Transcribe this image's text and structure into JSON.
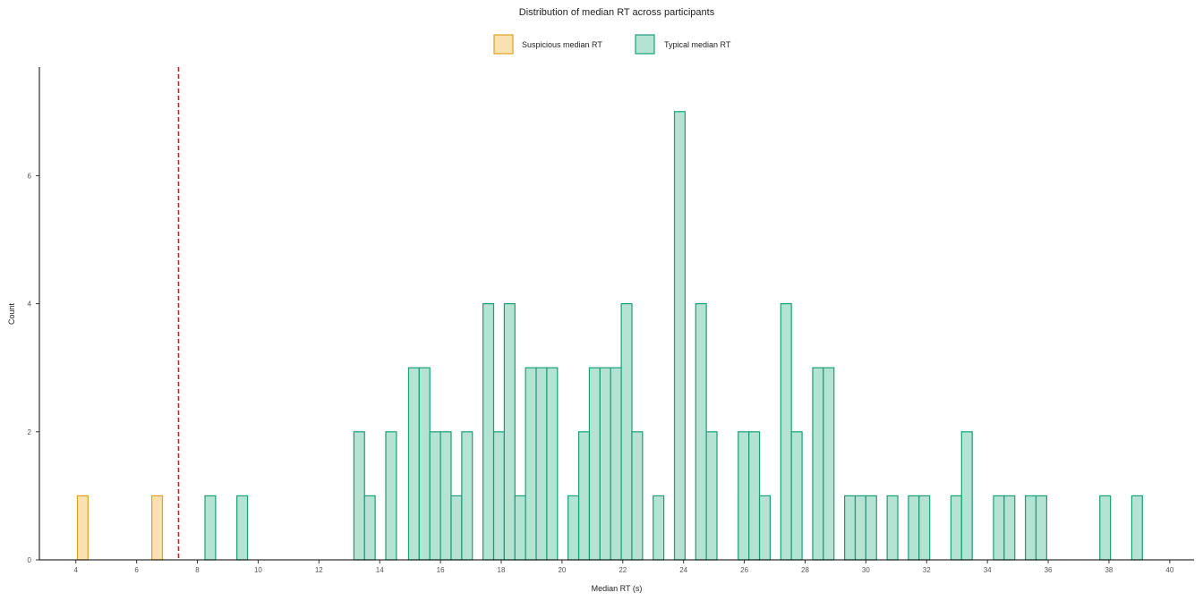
{
  "chart_data": {
    "type": "bar",
    "title": "Distribution of median RT across participants",
    "xlabel": "Median RT (s)",
    "ylabel": "Count",
    "xlim": [
      2.8,
      40.8
    ],
    "ylim": [
      0,
      7.0
    ],
    "bin_width": 0.35,
    "x_ticks": [
      "4",
      "6",
      "8",
      "10",
      "12",
      "14",
      "16",
      "18",
      "20",
      "22",
      "24",
      "26",
      "28",
      "30",
      "32",
      "34",
      "36",
      "38",
      "40"
    ],
    "y_ticks": [
      "0",
      "2",
      "4",
      "6"
    ],
    "threshold_line": 7.38,
    "legend": {
      "position": "top"
    },
    "series": [
      {
        "name": "Suspicious median RT",
        "fill": "#f9e2b0",
        "stroke": "#e0a020",
        "bins": [
          {
            "x": 4.05,
            "count": 1
          },
          {
            "x": 6.5,
            "count": 1
          }
        ]
      },
      {
        "name": "Typical median RT",
        "fill": "#b4e3d3",
        "stroke": "#1a9e77",
        "bins": [
          {
            "x": 8.25,
            "count": 1
          },
          {
            "x": 9.3,
            "count": 1
          },
          {
            "x": 13.15,
            "count": 2
          },
          {
            "x": 13.5,
            "count": 1
          },
          {
            "x": 14.2,
            "count": 2
          },
          {
            "x": 14.95,
            "count": 3
          },
          {
            "x": 15.3,
            "count": 3
          },
          {
            "x": 15.65,
            "count": 2
          },
          {
            "x": 16.0,
            "count": 2
          },
          {
            "x": 16.35,
            "count": 1
          },
          {
            "x": 16.7,
            "count": 2
          },
          {
            "x": 17.4,
            "count": 4
          },
          {
            "x": 17.75,
            "count": 2
          },
          {
            "x": 18.1,
            "count": 4
          },
          {
            "x": 18.45,
            "count": 1
          },
          {
            "x": 18.8,
            "count": 3
          },
          {
            "x": 19.15,
            "count": 3
          },
          {
            "x": 19.5,
            "count": 3
          },
          {
            "x": 20.2,
            "count": 1
          },
          {
            "x": 20.55,
            "count": 2
          },
          {
            "x": 20.9,
            "count": 3
          },
          {
            "x": 21.25,
            "count": 3
          },
          {
            "x": 21.6,
            "count": 3
          },
          {
            "x": 21.95,
            "count": 4
          },
          {
            "x": 22.3,
            "count": 2
          },
          {
            "x": 23.0,
            "count": 1
          },
          {
            "x": 23.7,
            "count": 7
          },
          {
            "x": 24.4,
            "count": 4
          },
          {
            "x": 24.75,
            "count": 2
          },
          {
            "x": 25.8,
            "count": 2
          },
          {
            "x": 26.15,
            "count": 2
          },
          {
            "x": 26.5,
            "count": 1
          },
          {
            "x": 27.2,
            "count": 4
          },
          {
            "x": 27.55,
            "count": 2
          },
          {
            "x": 28.25,
            "count": 3
          },
          {
            "x": 28.6,
            "count": 3
          },
          {
            "x": 29.3,
            "count": 1
          },
          {
            "x": 29.65,
            "count": 1
          },
          {
            "x": 30.0,
            "count": 1
          },
          {
            "x": 30.7,
            "count": 1
          },
          {
            "x": 31.4,
            "count": 1
          },
          {
            "x": 31.75,
            "count": 1
          },
          {
            "x": 32.8,
            "count": 1
          },
          {
            "x": 33.15,
            "count": 2
          },
          {
            "x": 34.2,
            "count": 1
          },
          {
            "x": 34.55,
            "count": 1
          },
          {
            "x": 35.25,
            "count": 1
          },
          {
            "x": 35.6,
            "count": 1
          },
          {
            "x": 37.7,
            "count": 1
          },
          {
            "x": 38.75,
            "count": 1
          }
        ]
      }
    ]
  }
}
